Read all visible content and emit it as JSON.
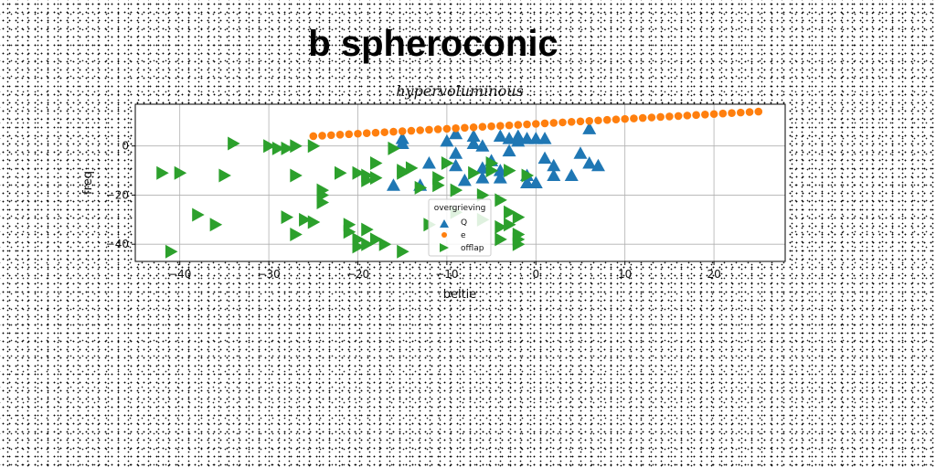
{
  "chart_data": {
    "type": "scatter",
    "title": "b spheroconic",
    "subtitle": "hypervoluminous",
    "xlabel": "beltie",
    "ylabel": "freq",
    "xlim": [
      -45,
      28
    ],
    "ylim": [
      -47,
      17
    ],
    "xticks": [
      -40,
      -30,
      -20,
      -10,
      0,
      10,
      20
    ],
    "yticks": [
      0,
      -20,
      -40
    ],
    "grid": true,
    "legend": {
      "title": "overgrieving",
      "placement": "lower-center"
    },
    "series": [
      {
        "name": "Q",
        "marker": "triangle-up",
        "color": "#1f77b4",
        "points": [
          [
            -15,
            3
          ],
          [
            -15,
            1
          ],
          [
            -16,
            -16
          ],
          [
            -13,
            -16
          ],
          [
            -12,
            -7
          ],
          [
            -9,
            5
          ],
          [
            -10,
            2
          ],
          [
            -9,
            -3
          ],
          [
            -9,
            -8
          ],
          [
            -8,
            -14
          ],
          [
            -7,
            1
          ],
          [
            -7,
            4
          ],
          [
            -6,
            0
          ],
          [
            -6,
            -9
          ],
          [
            -6,
            -13
          ],
          [
            -5,
            -6
          ],
          [
            -4,
            -10
          ],
          [
            -4,
            -13
          ],
          [
            -3,
            3
          ],
          [
            -3,
            -2
          ],
          [
            -4,
            4
          ],
          [
            -2,
            2
          ],
          [
            -2,
            4
          ],
          [
            -1,
            3
          ],
          [
            -1,
            -12
          ],
          [
            -1,
            -15
          ],
          [
            0,
            3
          ],
          [
            0,
            -15
          ],
          [
            1,
            3
          ],
          [
            1,
            -5
          ],
          [
            2,
            -12
          ],
          [
            2,
            -8
          ],
          [
            4,
            -12
          ],
          [
            5,
            -3
          ],
          [
            6,
            7
          ],
          [
            6,
            -7
          ],
          [
            7,
            -8
          ]
        ]
      },
      {
        "name": "e",
        "marker": "circle",
        "color": "#ff7f0e",
        "x_start": -25,
        "x_end": 25,
        "count": 51,
        "y_start": 4,
        "y_end": 14
      },
      {
        "name": "offlap",
        "marker": "triangle-right",
        "color": "#2ca02c",
        "points": [
          [
            -42,
            -11
          ],
          [
            -41,
            -43
          ],
          [
            -40,
            -11
          ],
          [
            -38,
            -28
          ],
          [
            -36,
            -32
          ],
          [
            -35,
            -12
          ],
          [
            -34,
            1
          ],
          [
            -30,
            0
          ],
          [
            -29,
            -1
          ],
          [
            -28,
            -29
          ],
          [
            -28,
            -1
          ],
          [
            -27,
            0
          ],
          [
            -27,
            -12
          ],
          [
            -27,
            -36
          ],
          [
            -26,
            -30
          ],
          [
            -25,
            0
          ],
          [
            -25,
            -31
          ],
          [
            -24,
            -18
          ],
          [
            -24,
            -20
          ],
          [
            -24,
            -23
          ],
          [
            -22,
            -11
          ],
          [
            -21,
            -32
          ],
          [
            -21,
            -35
          ],
          [
            -20,
            -38
          ],
          [
            -20,
            -41
          ],
          [
            -20,
            -11
          ],
          [
            -19,
            -14
          ],
          [
            -19,
            -34
          ],
          [
            -19,
            -40
          ],
          [
            -19,
            -12
          ],
          [
            -18,
            -7
          ],
          [
            -18,
            -13
          ],
          [
            -18,
            -38
          ],
          [
            -17,
            -40
          ],
          [
            -16,
            -1
          ],
          [
            -15,
            -43
          ],
          [
            -15,
            -10
          ],
          [
            -15,
            -11
          ],
          [
            -14,
            -9
          ],
          [
            -13,
            -17
          ],
          [
            -12,
            -32
          ],
          [
            -11,
            -16
          ],
          [
            -11,
            -13
          ],
          [
            -10,
            -7
          ],
          [
            -9,
            -27
          ],
          [
            -9,
            -18
          ],
          [
            -7,
            -11
          ],
          [
            -6,
            -30
          ],
          [
            -6,
            -20
          ],
          [
            -5,
            -7
          ],
          [
            -5,
            -10
          ],
          [
            -4,
            -22
          ],
          [
            -4,
            -38
          ],
          [
            -4,
            -33
          ],
          [
            -3,
            -27
          ],
          [
            -3,
            -32
          ],
          [
            -3,
            -10
          ],
          [
            -2,
            -36
          ],
          [
            -2,
            -29
          ],
          [
            -2,
            -40
          ],
          [
            -2,
            -38
          ],
          [
            -1,
            -12
          ]
        ]
      }
    ]
  }
}
